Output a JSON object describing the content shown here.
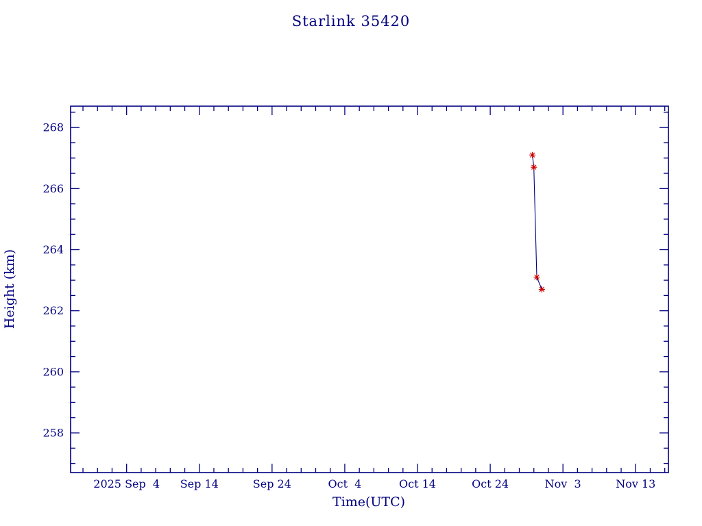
{
  "chart_data": {
    "type": "line",
    "title": "Starlink 35420",
    "xlabel": "Time(UTC)",
    "ylabel": "Height (km)",
    "grid": "off",
    "legend": "none",
    "axis_color": "#000080",
    "line_color": "#000080",
    "marker_color": "#cc0000",
    "marker_style": "asterisk",
    "x_axis": {
      "tick_labels": [
        "2025 Sep  4",
        "Sep 14",
        "Sep 24",
        "Oct  4",
        "Oct 14",
        "Oct 24",
        "Nov  3",
        "Nov 13"
      ],
      "tick_days": [
        0,
        10,
        20,
        30,
        40,
        50,
        60,
        70
      ],
      "minor_tick_step_days": 2,
      "xlim_days": [
        -7.7,
        74.5
      ],
      "epoch_day0": "2025 Sep 4"
    },
    "y_axis": {
      "tick_labels": [
        "258",
        "260",
        "262",
        "264",
        "266",
        "268"
      ],
      "tick_values": [
        258,
        260,
        262,
        264,
        266,
        268
      ],
      "minor_tick_step_km": 0.5,
      "ylim_km": [
        256.7,
        268.7
      ]
    },
    "series": [
      {
        "name": "height",
        "points": [
          {
            "date": "2025 Oct 30",
            "day": 55.8,
            "height_km": 267.1
          },
          {
            "date": "2025 Oct 30",
            "day": 56.0,
            "height_km": 266.7
          },
          {
            "date": "2025 Oct 30",
            "day": 56.4,
            "height_km": 263.1
          },
          {
            "date": "2025 Oct 31",
            "day": 57.1,
            "height_km": 262.7
          }
        ]
      }
    ]
  }
}
